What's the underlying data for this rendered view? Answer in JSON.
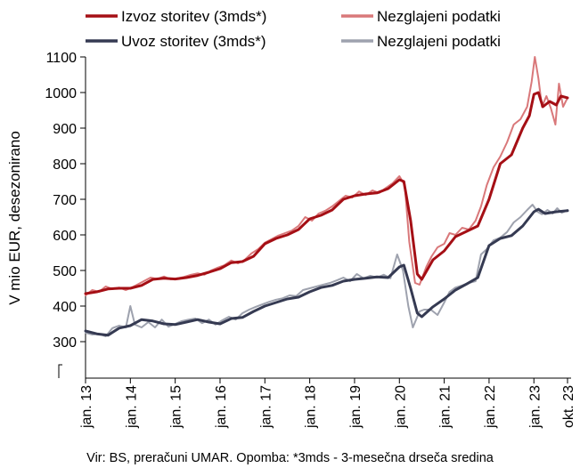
{
  "colors": {
    "export_smoothed": "#A50F15",
    "export_raw": "#D9787A",
    "import_smoothed": "#353A52",
    "import_raw": "#9EA2AE"
  },
  "source_note": "Vir: BS, preračuni UMAR. Opomba: *3mds - 3-mesečna drseča sredina",
  "chart_data": {
    "type": "line",
    "title": "",
    "ylabel": "V mio EUR, desezonirano",
    "xlabel": "",
    "ylim": [
      250,
      1100
    ],
    "axis_break": true,
    "yticks": [
      300,
      400,
      500,
      600,
      700,
      800,
      900,
      1000,
      1100
    ],
    "xticks": [
      {
        "label": "jan. 13",
        "x": 2013.0
      },
      {
        "label": "jan. 14",
        "x": 2014.0
      },
      {
        "label": "jan. 15",
        "x": 2015.0
      },
      {
        "label": "jan. 16",
        "x": 2016.0
      },
      {
        "label": "jan. 17",
        "x": 2017.0
      },
      {
        "label": "jan. 18",
        "x": 2018.0
      },
      {
        "label": "jan. 19",
        "x": 2019.0
      },
      {
        "label": "jan. 20",
        "x": 2020.0
      },
      {
        "label": "jan. 21",
        "x": 2021.0
      },
      {
        "label": "jan. 22",
        "x": 2022.0
      },
      {
        "label": "jan. 23",
        "x": 2023.0
      },
      {
        "label": "okt. 23",
        "x": 2023.75
      }
    ],
    "xlim": [
      2012.95,
      2023.85
    ],
    "grid": false,
    "legend_position": "top",
    "series": [
      {
        "name": "Izvoz storitev (3mds*)",
        "color": "#A50F15",
        "width": 3,
        "points": [
          [
            2013.0,
            435
          ],
          [
            2013.25,
            440
          ],
          [
            2013.5,
            448
          ],
          [
            2013.75,
            450
          ],
          [
            2014.0,
            450
          ],
          [
            2014.25,
            458
          ],
          [
            2014.5,
            475
          ],
          [
            2014.75,
            478
          ],
          [
            2015.0,
            476
          ],
          [
            2015.25,
            480
          ],
          [
            2015.5,
            486
          ],
          [
            2015.75,
            495
          ],
          [
            2016.0,
            505
          ],
          [
            2016.25,
            522
          ],
          [
            2016.5,
            525
          ],
          [
            2016.75,
            540
          ],
          [
            2017.0,
            575
          ],
          [
            2017.25,
            590
          ],
          [
            2017.5,
            600
          ],
          [
            2017.75,
            615
          ],
          [
            2018.0,
            645
          ],
          [
            2018.25,
            655
          ],
          [
            2018.5,
            670
          ],
          [
            2018.75,
            700
          ],
          [
            2019.0,
            710
          ],
          [
            2019.25,
            715
          ],
          [
            2019.5,
            718
          ],
          [
            2019.75,
            730
          ],
          [
            2020.0,
            755
          ],
          [
            2020.1,
            750
          ],
          [
            2020.25,
            640
          ],
          [
            2020.4,
            490
          ],
          [
            2020.5,
            475
          ],
          [
            2020.75,
            530
          ],
          [
            2021.0,
            555
          ],
          [
            2021.25,
            595
          ],
          [
            2021.5,
            610
          ],
          [
            2021.75,
            625
          ],
          [
            2022.0,
            700
          ],
          [
            2022.25,
            800
          ],
          [
            2022.5,
            825
          ],
          [
            2022.75,
            900
          ],
          [
            2022.9,
            935
          ],
          [
            2023.0,
            995
          ],
          [
            2023.1,
            1000
          ],
          [
            2023.2,
            960
          ],
          [
            2023.35,
            975
          ],
          [
            2023.5,
            965
          ],
          [
            2023.6,
            990
          ],
          [
            2023.75,
            985
          ]
        ]
      },
      {
        "name": "Nezglajeni podatki",
        "color": "#D9787A",
        "width": 2,
        "points": [
          [
            2013.0,
            430
          ],
          [
            2013.15,
            445
          ],
          [
            2013.3,
            440
          ],
          [
            2013.45,
            455
          ],
          [
            2013.6,
            448
          ],
          [
            2013.75,
            452
          ],
          [
            2013.9,
            445
          ],
          [
            2014.0,
            450
          ],
          [
            2014.15,
            460
          ],
          [
            2014.3,
            470
          ],
          [
            2014.45,
            480
          ],
          [
            2014.6,
            476
          ],
          [
            2014.75,
            483
          ],
          [
            2014.9,
            475
          ],
          [
            2015.05,
            478
          ],
          [
            2015.2,
            482
          ],
          [
            2015.35,
            488
          ],
          [
            2015.5,
            492
          ],
          [
            2015.65,
            488
          ],
          [
            2015.8,
            500
          ],
          [
            2015.95,
            508
          ],
          [
            2016.1,
            515
          ],
          [
            2016.25,
            528
          ],
          [
            2016.4,
            520
          ],
          [
            2016.55,
            530
          ],
          [
            2016.7,
            548
          ],
          [
            2016.85,
            560
          ],
          [
            2017.0,
            578
          ],
          [
            2017.15,
            588
          ],
          [
            2017.3,
            598
          ],
          [
            2017.45,
            605
          ],
          [
            2017.6,
            612
          ],
          [
            2017.75,
            625
          ],
          [
            2017.9,
            650
          ],
          [
            2018.05,
            640
          ],
          [
            2018.2,
            660
          ],
          [
            2018.35,
            668
          ],
          [
            2018.5,
            680
          ],
          [
            2018.65,
            695
          ],
          [
            2018.8,
            710
          ],
          [
            2018.95,
            705
          ],
          [
            2019.1,
            722
          ],
          [
            2019.25,
            712
          ],
          [
            2019.4,
            725
          ],
          [
            2019.55,
            718
          ],
          [
            2019.7,
            732
          ],
          [
            2019.85,
            745
          ],
          [
            2020.0,
            765
          ],
          [
            2020.12,
            740
          ],
          [
            2020.22,
            580
          ],
          [
            2020.35,
            465
          ],
          [
            2020.45,
            460
          ],
          [
            2020.6,
            510
          ],
          [
            2020.72,
            540
          ],
          [
            2020.85,
            565
          ],
          [
            2021.0,
            575
          ],
          [
            2021.12,
            605
          ],
          [
            2021.25,
            600
          ],
          [
            2021.4,
            620
          ],
          [
            2021.55,
            615
          ],
          [
            2021.7,
            640
          ],
          [
            2021.82,
            680
          ],
          [
            2021.95,
            740
          ],
          [
            2022.1,
            790
          ],
          [
            2022.25,
            820
          ],
          [
            2022.4,
            860
          ],
          [
            2022.55,
            910
          ],
          [
            2022.7,
            925
          ],
          [
            2022.85,
            960
          ],
          [
            2022.95,
            1030
          ],
          [
            2023.02,
            1100
          ],
          [
            2023.1,
            1040
          ],
          [
            2023.18,
            960
          ],
          [
            2023.28,
            990
          ],
          [
            2023.38,
            955
          ],
          [
            2023.48,
            910
          ],
          [
            2023.56,
            1025
          ],
          [
            2023.65,
            960
          ],
          [
            2023.75,
            985
          ]
        ]
      },
      {
        "name": "Uvoz storitev (3mds*)",
        "color": "#353A52",
        "width": 3,
        "points": [
          [
            2013.0,
            330
          ],
          [
            2013.25,
            322
          ],
          [
            2013.5,
            318
          ],
          [
            2013.75,
            338
          ],
          [
            2014.0,
            345
          ],
          [
            2014.25,
            362
          ],
          [
            2014.5,
            358
          ],
          [
            2014.75,
            350
          ],
          [
            2015.0,
            348
          ],
          [
            2015.25,
            355
          ],
          [
            2015.5,
            362
          ],
          [
            2015.75,
            355
          ],
          [
            2016.0,
            350
          ],
          [
            2016.25,
            365
          ],
          [
            2016.5,
            368
          ],
          [
            2016.75,
            385
          ],
          [
            2017.0,
            400
          ],
          [
            2017.25,
            410
          ],
          [
            2017.5,
            420
          ],
          [
            2017.75,
            425
          ],
          [
            2018.0,
            440
          ],
          [
            2018.25,
            452
          ],
          [
            2018.5,
            458
          ],
          [
            2018.75,
            470
          ],
          [
            2019.0,
            475
          ],
          [
            2019.25,
            478
          ],
          [
            2019.5,
            482
          ],
          [
            2019.75,
            480
          ],
          [
            2020.0,
            510
          ],
          [
            2020.1,
            515
          ],
          [
            2020.25,
            450
          ],
          [
            2020.4,
            380
          ],
          [
            2020.5,
            370
          ],
          [
            2020.75,
            398
          ],
          [
            2021.0,
            420
          ],
          [
            2021.25,
            445
          ],
          [
            2021.5,
            462
          ],
          [
            2021.75,
            480
          ],
          [
            2022.0,
            570
          ],
          [
            2022.25,
            590
          ],
          [
            2022.5,
            598
          ],
          [
            2022.75,
            625
          ],
          [
            2023.0,
            665
          ],
          [
            2023.1,
            672
          ],
          [
            2023.25,
            660
          ],
          [
            2023.5,
            665
          ],
          [
            2023.75,
            668
          ]
        ]
      },
      {
        "name": "Nezglajeni podatki",
        "color": "#9EA2AE",
        "width": 2,
        "points": [
          [
            2013.0,
            325
          ],
          [
            2013.15,
            320
          ],
          [
            2013.3,
            322
          ],
          [
            2013.45,
            315
          ],
          [
            2013.6,
            338
          ],
          [
            2013.75,
            345
          ],
          [
            2013.9,
            340
          ],
          [
            2014.0,
            400
          ],
          [
            2014.1,
            348
          ],
          [
            2014.25,
            340
          ],
          [
            2014.4,
            355
          ],
          [
            2014.55,
            340
          ],
          [
            2014.7,
            362
          ],
          [
            2014.85,
            342
          ],
          [
            2015.0,
            350
          ],
          [
            2015.15,
            358
          ],
          [
            2015.3,
            362
          ],
          [
            2015.45,
            365
          ],
          [
            2015.6,
            352
          ],
          [
            2015.75,
            362
          ],
          [
            2015.9,
            348
          ],
          [
            2016.05,
            360
          ],
          [
            2016.2,
            370
          ],
          [
            2016.35,
            362
          ],
          [
            2016.5,
            380
          ],
          [
            2016.65,
            390
          ],
          [
            2016.8,
            398
          ],
          [
            2016.95,
            405
          ],
          [
            2017.1,
            412
          ],
          [
            2017.25,
            418
          ],
          [
            2017.4,
            422
          ],
          [
            2017.55,
            430
          ],
          [
            2017.7,
            428
          ],
          [
            2017.85,
            445
          ],
          [
            2018.0,
            450
          ],
          [
            2018.15,
            455
          ],
          [
            2018.3,
            460
          ],
          [
            2018.45,
            465
          ],
          [
            2018.6,
            472
          ],
          [
            2018.75,
            480
          ],
          [
            2018.9,
            470
          ],
          [
            2019.05,
            490
          ],
          [
            2019.2,
            478
          ],
          [
            2019.35,
            485
          ],
          [
            2019.5,
            480
          ],
          [
            2019.65,
            488
          ],
          [
            2019.8,
            478
          ],
          [
            2019.95,
            545
          ],
          [
            2020.08,
            500
          ],
          [
            2020.2,
            400
          ],
          [
            2020.3,
            340
          ],
          [
            2020.45,
            385
          ],
          [
            2020.55,
            390
          ],
          [
            2020.7,
            390
          ],
          [
            2020.85,
            375
          ],
          [
            2021.0,
            410
          ],
          [
            2021.12,
            440
          ],
          [
            2021.25,
            452
          ],
          [
            2021.4,
            458
          ],
          [
            2021.55,
            465
          ],
          [
            2021.7,
            470
          ],
          [
            2021.82,
            545
          ],
          [
            2021.95,
            560
          ],
          [
            2022.1,
            585
          ],
          [
            2022.25,
            592
          ],
          [
            2022.4,
            608
          ],
          [
            2022.55,
            635
          ],
          [
            2022.7,
            650
          ],
          [
            2022.85,
            670
          ],
          [
            2022.97,
            685
          ],
          [
            2023.08,
            665
          ],
          [
            2023.18,
            658
          ],
          [
            2023.3,
            670
          ],
          [
            2023.42,
            660
          ],
          [
            2023.52,
            675
          ],
          [
            2023.62,
            662
          ],
          [
            2023.75,
            670
          ]
        ]
      }
    ],
    "legend": [
      {
        "label": "Izvoz storitev (3mds*)",
        "series_index": 0
      },
      {
        "label": "Nezglajeni podatki",
        "series_index": 1
      },
      {
        "label": "Uvoz storitev (3mds*)",
        "series_index": 2
      },
      {
        "label": "Nezglajeni podatki",
        "series_index": 3
      }
    ]
  }
}
